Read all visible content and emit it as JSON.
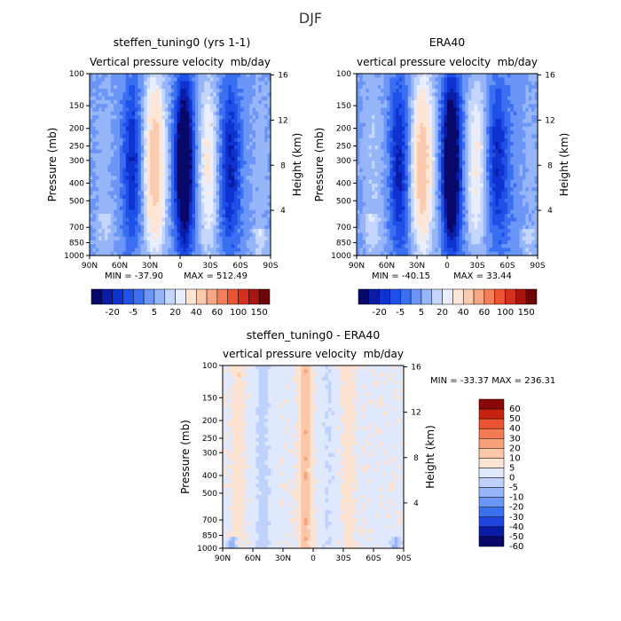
{
  "figure_title": "DJF",
  "colors": {
    "model_palette": [
      "#08086b",
      "#0a1ca6",
      "#0e33d0",
      "#1f51e8",
      "#3a6ff2",
      "#6b95f7",
      "#97b6f9",
      "#c4d6fb",
      "#e8eefd",
      "#fde6d6",
      "#fbcbb0",
      "#f8a784",
      "#f47e5a",
      "#ea5430",
      "#d5301d",
      "#a8140f",
      "#6d0606"
    ],
    "diff_palette": [
      "#08086b",
      "#0a1ca6",
      "#1f44e0",
      "#3a6ff2",
      "#6b95f7",
      "#97b6f9",
      "#bfd2fb",
      "#dfe8fd",
      "#fde4d2",
      "#fbc7a8",
      "#f8a07a",
      "#f47b53",
      "#ea5430",
      "#c8230f",
      "#8a0707"
    ]
  },
  "chart_data": [
    {
      "type": "heatmap",
      "panel": "model",
      "title": "steffen_tuning0 (yrs 1-1)",
      "subtitle_left": "Vertical pressure velocity",
      "subtitle_right": "mb/day",
      "ylabel": "Pressure (mb)",
      "ylabel_right": "Height (km)",
      "xticks": [
        "90N",
        "60N",
        "30N",
        "0",
        "30S",
        "60S",
        "90S"
      ],
      "yticks": [
        "100",
        "150",
        "200",
        "250",
        "300",
        "400",
        "500",
        "700",
        "850",
        "1000"
      ],
      "yticks_right": [
        "16",
        "12",
        "8",
        "4"
      ],
      "ylog": true,
      "ylim": [
        1000,
        100
      ],
      "xlim": [
        90,
        -90
      ],
      "min_label": "MIN = -37.90",
      "max_label": "MAX = 512.49",
      "colorbar_labels": [
        "-20",
        "-5",
        "5",
        "20",
        "40",
        "60",
        "100",
        "150"
      ]
    },
    {
      "type": "heatmap",
      "panel": "era40",
      "title": "ERA40",
      "subtitle_left": "vertical pressure velocity",
      "subtitle_right": "mb/day",
      "ylabel": "Pressure (mb)",
      "ylabel_right": "Height (km)",
      "xticks": [
        "90N",
        "60N",
        "30N",
        "0",
        "30S",
        "60S",
        "90S"
      ],
      "yticks": [
        "100",
        "150",
        "200",
        "250",
        "300",
        "400",
        "500",
        "700",
        "850",
        "1000"
      ],
      "yticks_right": [
        "16",
        "12",
        "8",
        "4"
      ],
      "ylog": true,
      "ylim": [
        1000,
        100
      ],
      "xlim": [
        90,
        -90
      ],
      "min_label": "MIN = -40.15",
      "max_label": "MAX = 33.44",
      "colorbar_labels": [
        "-20",
        "-5",
        "5",
        "20",
        "40",
        "60",
        "100",
        "150"
      ]
    },
    {
      "type": "heatmap",
      "panel": "difference",
      "title": "steffen_tuning0 - ERA40",
      "subtitle_left": "vertical pressure velocity",
      "subtitle_right": "mb/day",
      "ylabel": "Pressure (mb)",
      "ylabel_right": "Height (km)",
      "xticks": [
        "90N",
        "60N",
        "30N",
        "0",
        "30S",
        "60S",
        "90S"
      ],
      "yticks": [
        "100",
        "150",
        "200",
        "250",
        "300",
        "400",
        "500",
        "700",
        "850",
        "1000"
      ],
      "yticks_right": [
        "16",
        "12",
        "8",
        "4"
      ],
      "ylog": true,
      "ylim": [
        1000,
        100
      ],
      "xlim": [
        90,
        -90
      ],
      "minmax_label": "MIN = -33.37   MAX = 236.31",
      "colorbar_labels": [
        "60",
        "50",
        "40",
        "30",
        "20",
        "10",
        "5",
        "0",
        "-5",
        "-10",
        "-20",
        "-30",
        "-40",
        "-50",
        "-60"
      ]
    }
  ]
}
